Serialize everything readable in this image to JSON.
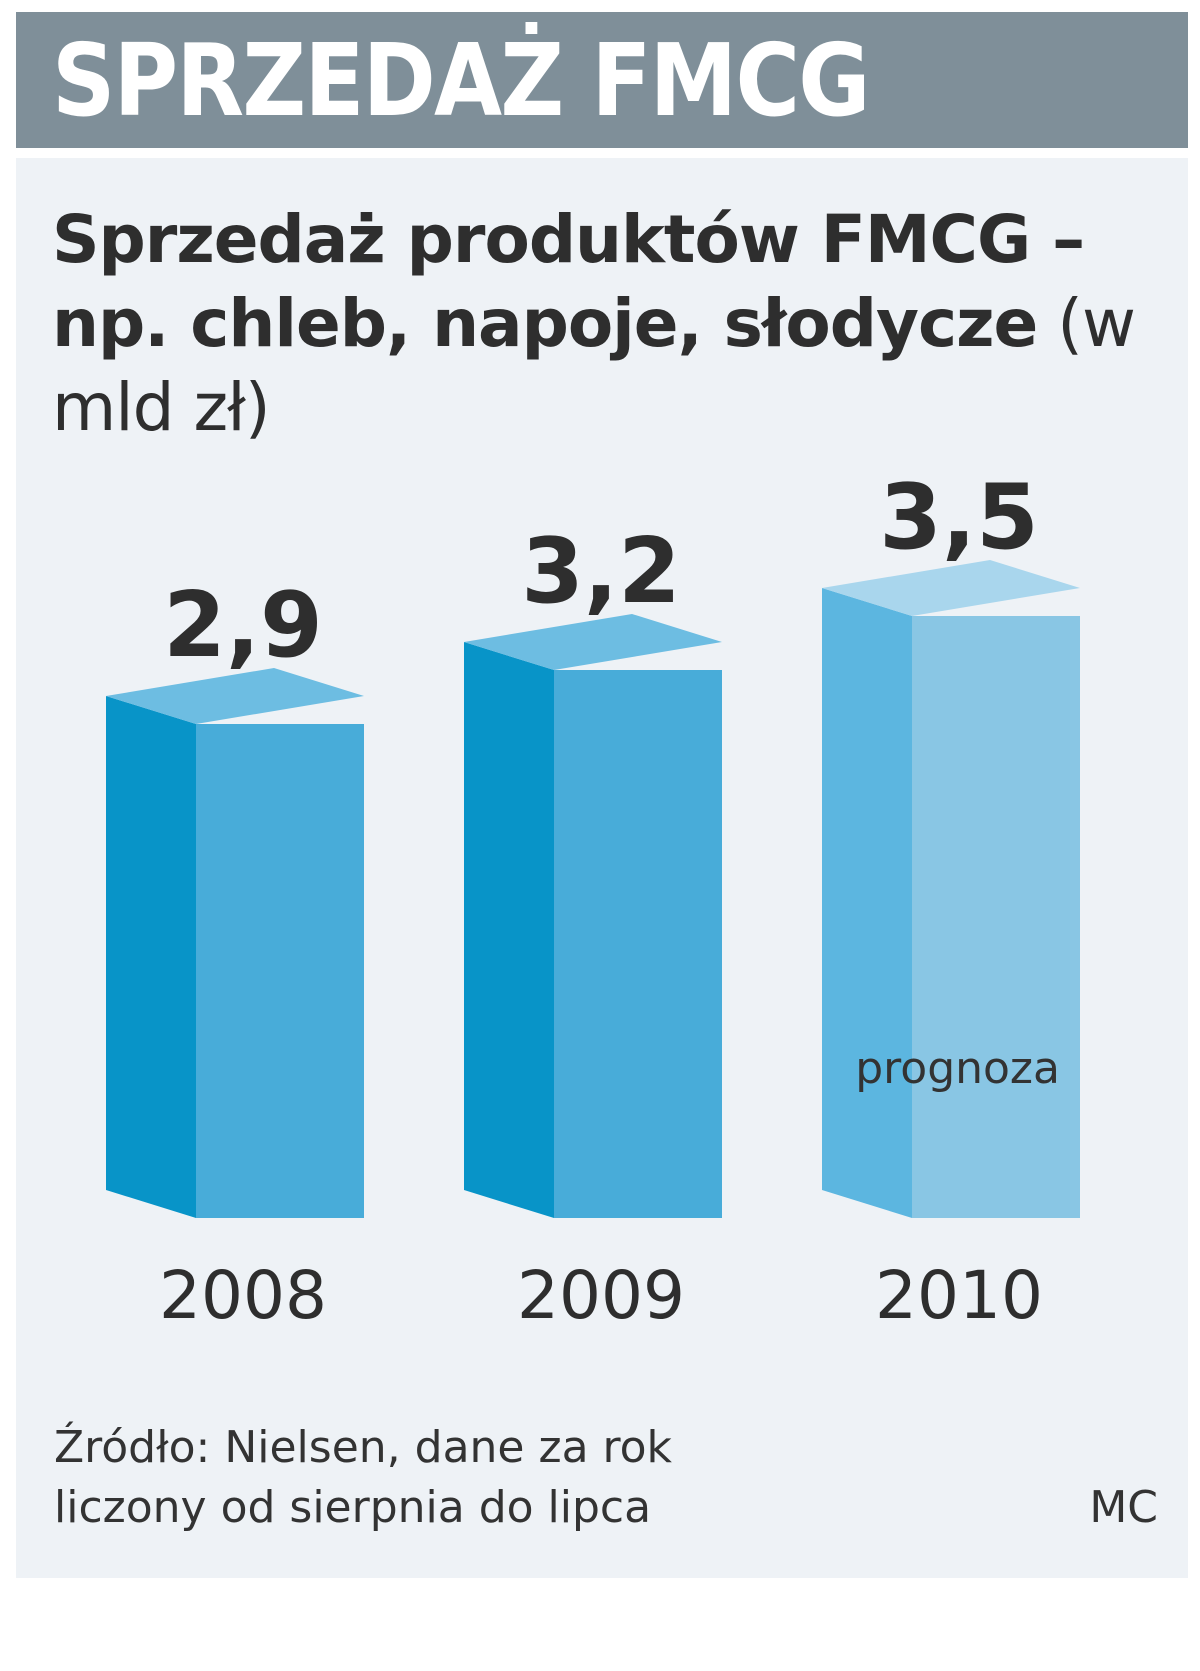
{
  "header": {
    "title": "SPRZEDAŻ FMCG"
  },
  "chart_data": {
    "type": "bar",
    "title_bold": "Sprzedaż produktów FMCG – np. chleb, napoje, słodycze",
    "unit": "(w mld zł)",
    "categories": [
      "2008",
      "2009",
      "2010"
    ],
    "values": [
      2.9,
      3.2,
      3.5
    ],
    "value_labels": [
      "2,9",
      "3,2",
      "3,5"
    ],
    "annotations": [
      {
        "category": "2010",
        "text": "prognoza"
      }
    ],
    "legend": "none",
    "grid": false
  },
  "footer": {
    "source_line1": "Źródło: Nielsen, dane za rok",
    "source_line2": "liczony od sierpnia do lipca",
    "credit": "MC"
  },
  "colors": {
    "header_bg": "#7f8f99",
    "panel_bg": "#eef2f6",
    "bar_front": "#48acd9",
    "bar_side": "#0894c8",
    "bar_top": "#6dbde2",
    "forecast_front": "#89c6e4",
    "forecast_side": "#5cb6e0",
    "forecast_top": "#a9d6ed",
    "text": "#2e2e2e"
  }
}
